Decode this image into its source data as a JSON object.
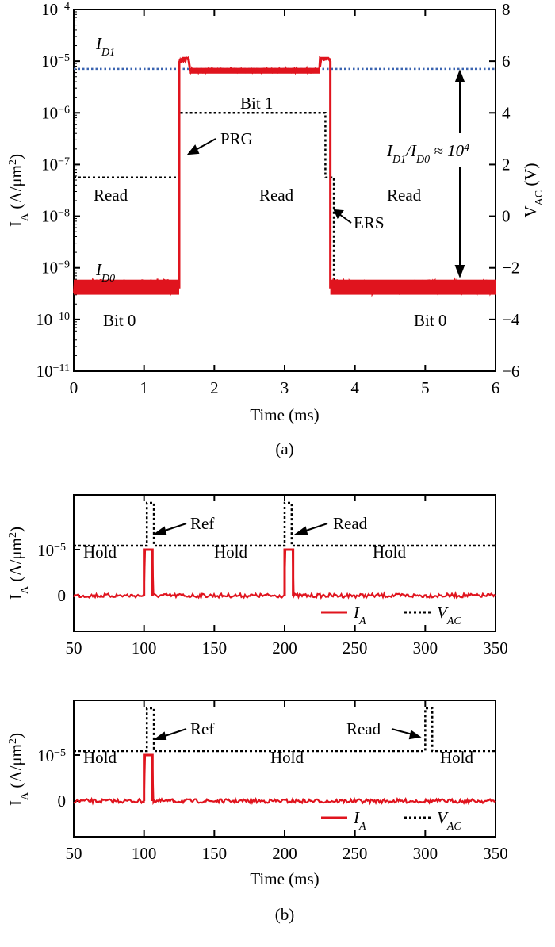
{
  "panel_labels": {
    "a": "(a)",
    "b": "(b)"
  },
  "chart_data": [
    {
      "id": "a",
      "type": "line",
      "xlabel": "Time (ms)",
      "ylabel_left": "I_A (A/μm²)",
      "ylabel_right": "V_AC (V)",
      "xlim": [
        0,
        6
      ],
      "ylim_left_log10": [
        -11,
        -4
      ],
      "ylim_right": [
        -6,
        8
      ],
      "left_scale": "log",
      "x_ticks": [
        0,
        1,
        2,
        3,
        4,
        5,
        6
      ],
      "left_ticks_exp": [
        -4,
        -5,
        -6,
        -7,
        -8,
        -9,
        -10,
        -11
      ],
      "right_ticks": [
        8,
        6,
        4,
        2,
        0,
        -2,
        -4,
        -6
      ],
      "series": [
        {
          "name": "I_A",
          "color": "#e0141e",
          "style": "solid",
          "axis": "left",
          "segments": [
            {
              "x": [
                0,
                1.5
              ],
              "log10_y": -9.35
            },
            {
              "x": [
                1.5,
                1.55
              ],
              "log10_y": -5
            },
            {
              "x": [
                1.55,
                1.65
              ],
              "log10_y": -4.97
            },
            {
              "x": [
                1.65,
                3.5
              ],
              "log10_y": -5.18
            },
            {
              "x": [
                3.5,
                3.65
              ],
              "log10_y": -4.97
            },
            {
              "x": [
                3.65,
                6
              ],
              "log10_y": -9.37
            }
          ]
        },
        {
          "name": "V_AC",
          "color": "#000000",
          "style": "dotted",
          "axis": "right",
          "x": [
            0,
            1.38,
            1.38,
            1.5,
            1.5,
            3.58,
            3.58,
            3.7,
            3.7,
            6
          ],
          "y": [
            1.5,
            1.5,
            1.5,
            1.5,
            4.0,
            4.0,
            1.5,
            1.5,
            -2.8,
            -2.8
          ]
        },
        {
          "name": "I_D1",
          "color": "#3a63b0",
          "style": "dotted",
          "axis": "left",
          "log10_y": -5.15
        }
      ],
      "annotations": {
        "read_left": "Read",
        "read_mid": "Read",
        "read_right": "Read",
        "bit1": "Bit 1",
        "bit0_left": "Bit 0",
        "bit0_right": "Bit 0",
        "prg": "PRG",
        "ers": "ERS",
        "id1": "I_D1",
        "id0": "I_D0",
        "ratio": "I_D1/I_D0 ≈ 10⁴"
      }
    },
    {
      "id": "b1",
      "type": "line",
      "xlabel": "",
      "ylabel": "I_A (A/μm²)",
      "xlim": [
        50,
        350
      ],
      "x_ticks": [
        50,
        100,
        150,
        200,
        250,
        300,
        350
      ],
      "y_tick_labels": [
        "10⁻⁵",
        "0"
      ],
      "series": [
        {
          "name": "I_A",
          "color": "#e0141e",
          "style": "solid",
          "pulses": [
            [
              100,
              106
            ],
            [
              200,
              206
            ]
          ],
          "pulse_level": 1,
          "base_level": 0
        },
        {
          "name": "V_AC",
          "color": "#000000",
          "style": "dotted",
          "pulses": [
            [
              102,
              107
            ],
            [
              200,
              205
            ]
          ]
        }
      ],
      "annotations": {
        "ref": "Ref",
        "read": "Read",
        "hold1": "Hold",
        "hold2": "Hold",
        "hold3": "Hold"
      },
      "legend": {
        "ia": "I_A",
        "vac": "V_AC"
      }
    },
    {
      "id": "b2",
      "type": "line",
      "xlabel": "Time (ms)",
      "ylabel": "I_A (A/μm²)",
      "xlim": [
        50,
        350
      ],
      "x_ticks": [
        50,
        100,
        150,
        200,
        250,
        300,
        350
      ],
      "y_tick_labels": [
        "10⁻⁵",
        "0"
      ],
      "series": [
        {
          "name": "I_A",
          "color": "#e0141e",
          "style": "solid",
          "pulses": [
            [
              100,
              106
            ]
          ],
          "pulse_level": 1,
          "base_level": 0
        },
        {
          "name": "V_AC",
          "color": "#000000",
          "style": "dotted",
          "pulses": [
            [
              102,
              107
            ],
            [
              300,
              305
            ]
          ]
        }
      ],
      "annotations": {
        "ref": "Ref",
        "read": "Read",
        "hold1": "Hold",
        "hold2": "Hold",
        "hold3": "Hold"
      },
      "legend": {
        "ia": "I_A",
        "vac": "V_AC"
      }
    }
  ]
}
